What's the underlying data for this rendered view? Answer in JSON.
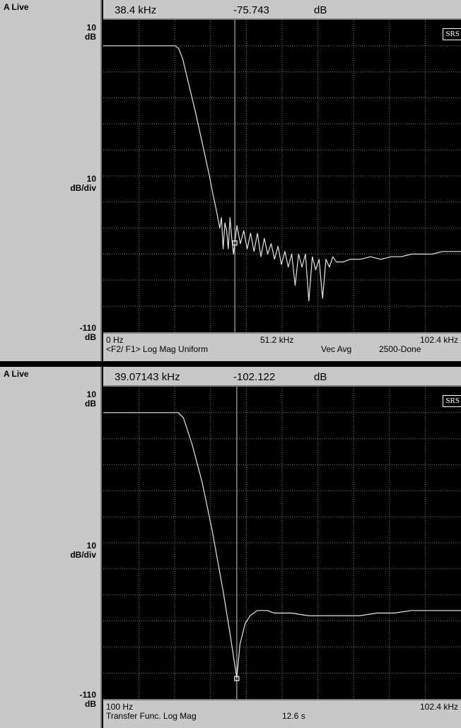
{
  "chart_data": [
    {
      "type": "line",
      "status_label": "A Live",
      "readout": {
        "frequency": "38.4 kHz",
        "value": "-75.743",
        "unit": "dB"
      },
      "y_axis": {
        "top_label": "10",
        "top_unit": "dB",
        "scale": "10",
        "scale_unit": "dB/div",
        "bottom_label": "-110",
        "bottom_unit": "dB",
        "ylim": [
          -110,
          10
        ]
      },
      "x_axis": {
        "start_label": "0 Hz",
        "mid_label": "51.2 kHz",
        "end_label": "102.4 kHz",
        "xlim": [
          0,
          104.4
        ]
      },
      "measurement": "<F2/ F1> Log Mag Uniform",
      "averaging": "Vec Avg",
      "status": "2500-Done",
      "brand": "SRS",
      "marker": {
        "x": 38.4,
        "y": -75.743
      },
      "grid": true,
      "trace_color": "#e6e6e6",
      "series": [
        {
          "x": [
            0,
            19,
            21,
            22,
            23.2,
            25,
            27,
            29,
            31,
            32,
            33,
            34,
            34.5,
            35,
            35.5,
            36,
            36.5,
            37,
            37.5,
            38,
            38.4,
            39,
            40,
            41,
            42,
            43,
            44,
            45,
            46,
            47,
            48,
            49,
            50,
            51,
            52,
            53,
            54,
            55,
            56,
            57,
            58,
            59,
            60,
            61,
            62,
            63,
            64,
            65,
            66,
            67,
            68,
            70,
            72,
            75,
            78,
            81,
            84,
            87,
            90,
            93,
            96,
            99,
            102,
            104.4
          ],
          "y": [
            0,
            0,
            0,
            -1,
            -5,
            -15,
            -26,
            -38,
            -50,
            -57,
            -63,
            -70,
            -66,
            -78,
            -68,
            -71,
            -78,
            -66,
            -74,
            -80,
            -75.7,
            -69,
            -76,
            -71,
            -78,
            -72,
            -79,
            -72,
            -81,
            -74,
            -80,
            -76,
            -82,
            -77,
            -84,
            -79,
            -85,
            -80,
            -92,
            -80,
            -85,
            -80,
            -98,
            -81,
            -86,
            -82,
            -97,
            -82,
            -85,
            -81,
            -83,
            -83,
            -82,
            -82,
            -81,
            -82,
            -81,
            -81,
            -80,
            -80,
            -80,
            -79,
            -79,
            -79
          ]
        }
      ]
    },
    {
      "type": "line",
      "status_label": "A Live",
      "readout": {
        "frequency": "39.07143 kHz",
        "value": "-102.122",
        "unit": "dB"
      },
      "y_axis": {
        "top_label": "10",
        "top_unit": "dB",
        "scale": "10",
        "scale_unit": "dB/div",
        "bottom_label": "-110",
        "bottom_unit": "dB",
        "ylim": [
          -110,
          10
        ]
      },
      "x_axis": {
        "start_label": "100 Hz",
        "mid_label": "",
        "end_label": "102.4 kHz",
        "xlim": [
          0.1,
          104.5
        ]
      },
      "measurement": "Transfer Func. Log Mag",
      "time": "12.6 s",
      "brand": "SRS",
      "marker": {
        "x": 39.07,
        "y": -102.122
      },
      "grid": true,
      "trace_color": "#e6e6e6",
      "series": [
        {
          "x": [
            0.1,
            20,
            22,
            23.5,
            26,
            29,
            32,
            35,
            37,
            38.5,
            39.07,
            40,
            41.5,
            43,
            45,
            48,
            50,
            55,
            60,
            65,
            70,
            75,
            80,
            85,
            90,
            95,
            100,
            104.5
          ],
          "y": [
            0,
            0,
            0,
            -2,
            -12,
            -27,
            -46,
            -68,
            -84,
            -97,
            -102,
            -89,
            -81,
            -78,
            -76,
            -76,
            -77,
            -77,
            -78,
            -78,
            -78,
            -78,
            -77,
            -77,
            -76,
            -76,
            -76,
            -76
          ]
        }
      ]
    }
  ]
}
